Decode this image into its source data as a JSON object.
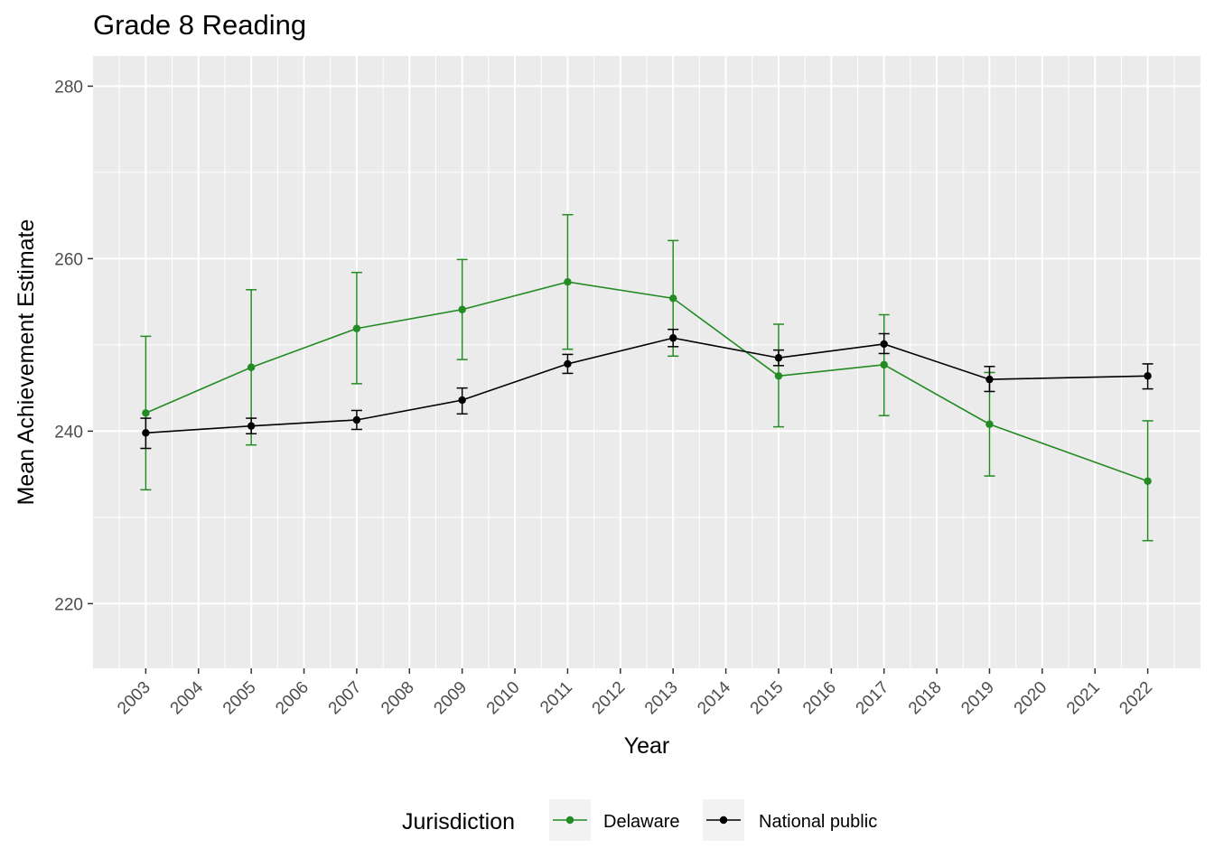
{
  "chart_data": {
    "type": "line",
    "title": "Grade 8 Reading",
    "xlabel": "Year",
    "ylabel": "Mean Achievement Estimate",
    "x_ticks": [
      "2003",
      "2004",
      "2005",
      "2006",
      "2007",
      "2008",
      "2009",
      "2010",
      "2011",
      "2012",
      "2013",
      "2014",
      "2015",
      "2016",
      "2017",
      "2018",
      "2019",
      "2020",
      "2021",
      "2022"
    ],
    "y_ticks": [
      220,
      240,
      260,
      280
    ],
    "xlim": [
      2002.0,
      2023.0
    ],
    "ylim": [
      212.5,
      283.5
    ],
    "grid": true,
    "legend": {
      "title": "Jurisdiction",
      "position": "bottom",
      "entries": [
        "Delaware",
        "National public"
      ]
    },
    "series": [
      {
        "name": "Delaware",
        "color": "#228B22",
        "x": [
          2003,
          2005,
          2007,
          2009,
          2011,
          2013,
          2015,
          2017,
          2019,
          2022
        ],
        "y": [
          242.1,
          247.4,
          251.9,
          254.1,
          257.3,
          255.4,
          246.4,
          247.7,
          240.8,
          234.2
        ],
        "ymin": [
          233.2,
          238.4,
          245.5,
          248.3,
          249.5,
          248.7,
          240.5,
          241.8,
          234.8,
          227.3
        ],
        "ymax": [
          251.0,
          256.4,
          258.4,
          259.9,
          265.1,
          262.1,
          252.4,
          253.5,
          246.8,
          241.2
        ]
      },
      {
        "name": "National public",
        "color": "#000000",
        "x": [
          2003,
          2005,
          2007,
          2009,
          2011,
          2013,
          2015,
          2017,
          2019,
          2022
        ],
        "y": [
          239.8,
          240.6,
          241.3,
          243.6,
          247.8,
          250.8,
          248.5,
          250.1,
          246.0,
          246.4
        ],
        "ymin": [
          238.0,
          239.7,
          240.2,
          242.0,
          246.7,
          249.8,
          247.6,
          249.0,
          244.6,
          244.9
        ],
        "ymax": [
          241.5,
          241.5,
          242.4,
          245.0,
          248.9,
          251.8,
          249.4,
          251.3,
          247.5,
          247.8
        ]
      }
    ]
  }
}
